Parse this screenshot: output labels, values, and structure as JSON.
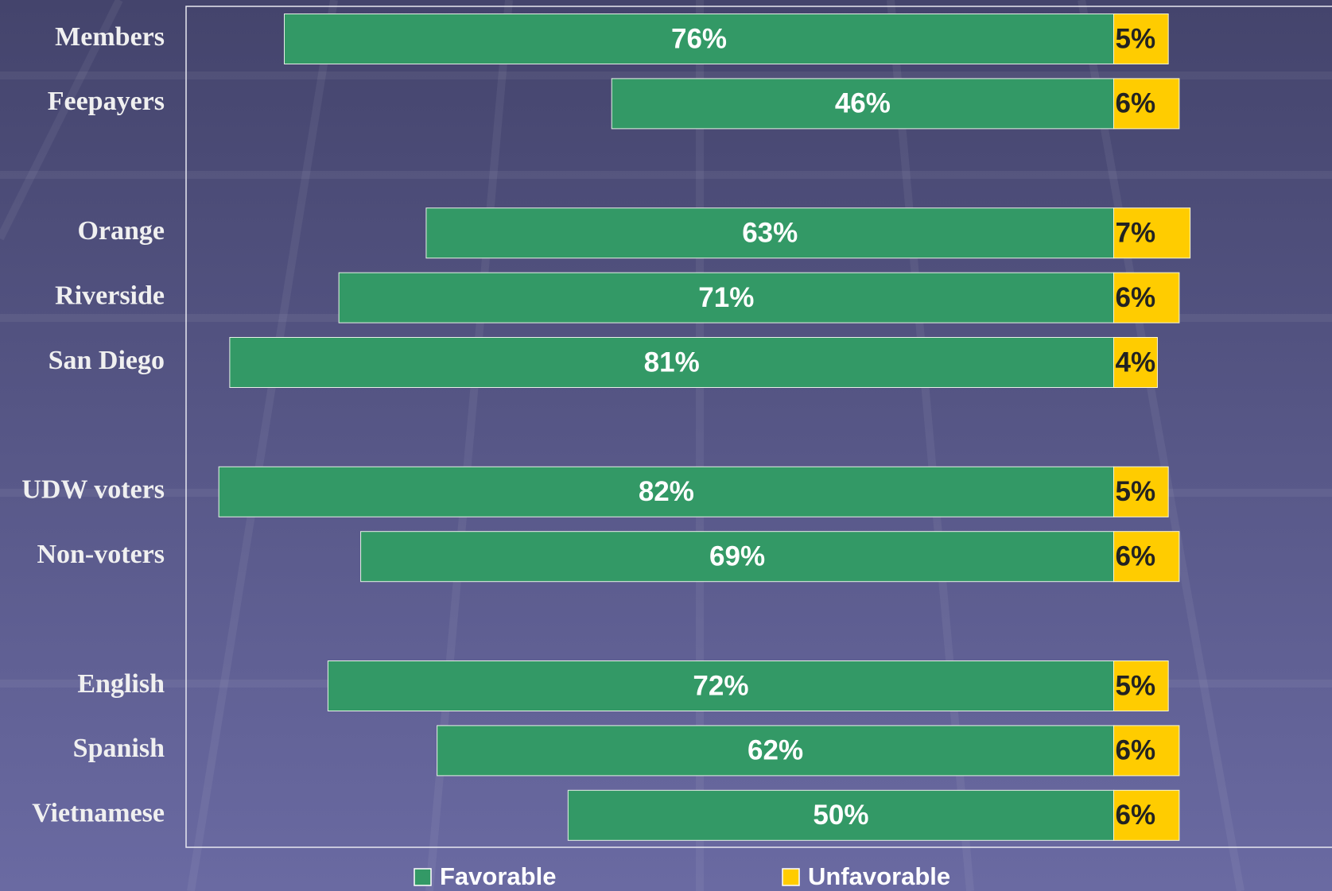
{
  "chart_data": {
    "type": "diverging_bar",
    "categories": [
      "Members",
      "Feepayers",
      null,
      "Orange",
      "Riverside",
      "San Diego",
      null,
      "UDW voters",
      "Non-voters",
      null,
      "English",
      "Spanish",
      "Vietnamese"
    ],
    "series": [
      {
        "name": "Favorable",
        "color": "#339966",
        "values": [
          76,
          46,
          null,
          63,
          71,
          81,
          null,
          82,
          69,
          null,
          72,
          62,
          50
        ],
        "value_labels": [
          "76%",
          "46%",
          null,
          "63%",
          "71%",
          "81%",
          null,
          "82%",
          "69%",
          null,
          "72%",
          "62%",
          "50%"
        ]
      },
      {
        "name": "Unfavorable",
        "color": "#ffcc00",
        "values": [
          5,
          6,
          null,
          7,
          6,
          4,
          null,
          5,
          6,
          null,
          5,
          6,
          6
        ],
        "value_labels": [
          "5%",
          "6%",
          null,
          "7%",
          "6%",
          "4%",
          null,
          "5%",
          "6%",
          null,
          "5%",
          "6%",
          "6%"
        ]
      }
    ],
    "xlim": [
      -85,
      20
    ],
    "legend": "bottom"
  }
}
